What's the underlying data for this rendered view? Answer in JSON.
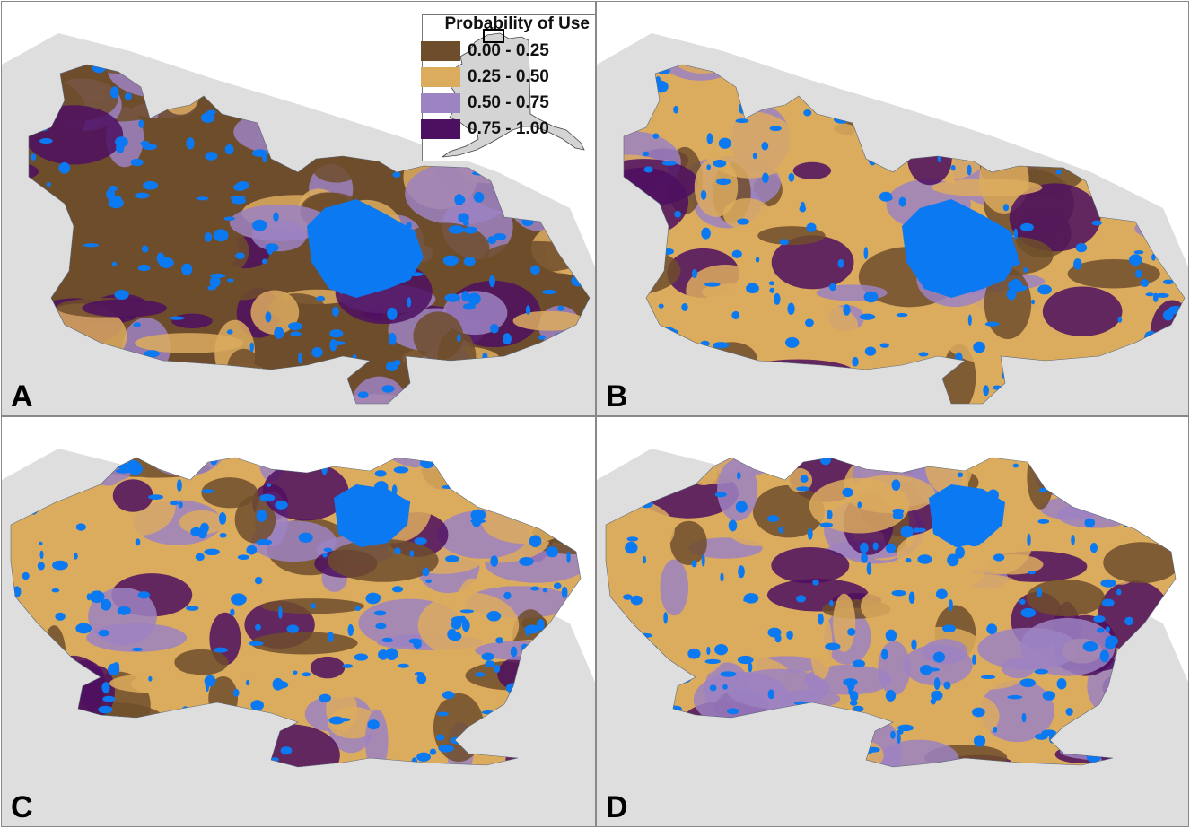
{
  "legend": {
    "title": "Probability of Use",
    "items": [
      {
        "label": "0.00 - 0.25",
        "color": "#6e4d2c"
      },
      {
        "label": "0.25 - 0.50",
        "color": "#dcac5e"
      },
      {
        "label": "0.50 - 0.75",
        "color": "#9c83c2"
      },
      {
        "label": "0.75 - 1.00",
        "color": "#4d0f60"
      }
    ]
  },
  "colors": {
    "water": "#0a79f2",
    "land_background": "#dedede",
    "ocean": "#ffffff",
    "inset_land": "#d4d4d4"
  },
  "panels": [
    {
      "label": "A",
      "dominant": [
        "#6e4d2c",
        "#dcac5e",
        "#9c83c2",
        "#4d0f60"
      ]
    },
    {
      "label": "B",
      "dominant": [
        "#dcac5e",
        "#6e4d2c",
        "#9c83c2",
        "#4d0f60"
      ]
    },
    {
      "label": "C",
      "dominant": [
        "#dcac5e",
        "#9c83c2",
        "#6e4d2c",
        "#4d0f60"
      ]
    },
    {
      "label": "D",
      "dominant": [
        "#dcac5e",
        "#9c83c2",
        "#6e4d2c",
        "#4d0f60"
      ]
    }
  ],
  "inset": {
    "name": "alaska-locator-map"
  }
}
